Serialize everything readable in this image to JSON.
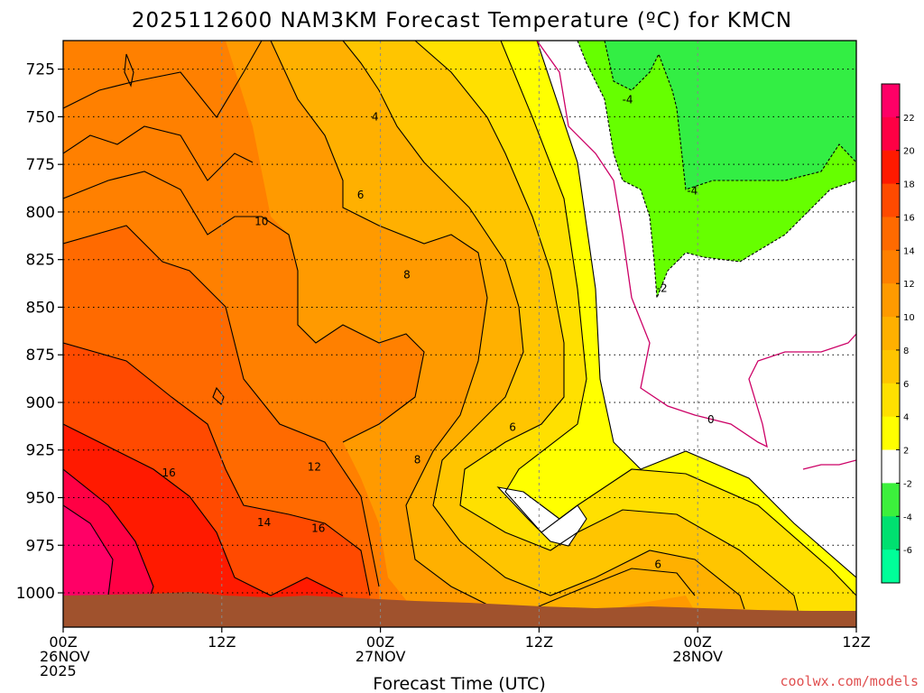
{
  "chart_data": {
    "type": "heatmap",
    "title": "2025112600 NAM3KM Forecast Temperature (ºC) for KMCN",
    "xlabel": "Forecast Time (UTC)",
    "ylabel": "",
    "x_ticks": [
      {
        "hour": 0,
        "lines": [
          "00Z",
          "26NOV",
          "2025"
        ]
      },
      {
        "hour": 12,
        "lines": [
          "12Z"
        ]
      },
      {
        "hour": 24,
        "lines": [
          "00Z",
          "27NOV"
        ]
      },
      {
        "hour": 36,
        "lines": [
          "12Z"
        ]
      },
      {
        "hour": 48,
        "lines": [
          "00Z",
          "28NOV"
        ]
      },
      {
        "hour": 60,
        "lines": [
          "12Z"
        ]
      }
    ],
    "xlim": [
      0,
      60
    ],
    "y_ticks": [
      725,
      750,
      775,
      800,
      825,
      850,
      875,
      900,
      925,
      950,
      975,
      1000
    ],
    "ylim": [
      1018,
      710
    ],
    "grid": true,
    "colorbar": {
      "ticks": [
        22,
        20,
        18,
        16,
        14,
        12,
        10,
        8,
        6,
        4,
        2,
        -2,
        -4,
        -6
      ],
      "colors": [
        "#ff0066",
        "#ff0044",
        "#ff1a00",
        "#ff4a00",
        "#ff6a00",
        "#ff8000",
        "#ff9a00",
        "#ffb000",
        "#ffc500",
        "#ffe000",
        "#ffff00",
        "#ffffff",
        "#3cf03c",
        "#00e070",
        "#00ff99"
      ]
    },
    "contour_labels": [
      {
        "text": "4",
        "hour": 23.6,
        "p": 750
      },
      {
        "text": "6",
        "hour": 22.5,
        "p": 791
      },
      {
        "text": "10",
        "hour": 15.0,
        "p": 805
      },
      {
        "text": "8",
        "hour": 26.0,
        "p": 833
      },
      {
        "text": "12",
        "hour": 19.0,
        "p": 934
      },
      {
        "text": "16",
        "hour": 8.0,
        "p": 937
      },
      {
        "text": "8",
        "hour": 26.8,
        "p": 930
      },
      {
        "text": "6",
        "hour": 34.0,
        "p": 913
      },
      {
        "text": "14",
        "hour": 15.2,
        "p": 963
      },
      {
        "text": "16",
        "hour": 19.3,
        "p": 966
      },
      {
        "text": "6",
        "hour": 45.0,
        "p": 985
      },
      {
        "text": "0",
        "hour": 49.0,
        "p": 909
      },
      {
        "text": "-4",
        "hour": 42.7,
        "p": 741
      },
      {
        "text": "-4",
        "hour": 47.6,
        "p": 789
      },
      {
        "text": "-2",
        "hour": 45.3,
        "p": 840
      }
    ]
  },
  "footer": {
    "credit": "coolwx.com/models"
  }
}
